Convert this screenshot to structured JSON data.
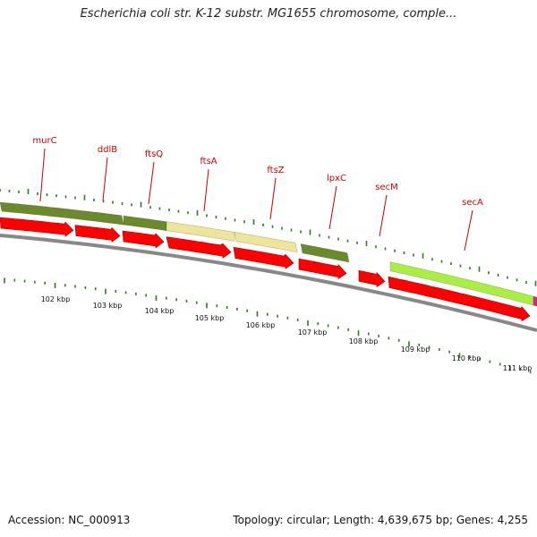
{
  "title": "Escherichia coli str. K-12 substr. MG1655 chromosome, comple...",
  "footer": {
    "accession": "Accession: NC_000913",
    "summary": "Topology: circular; Length: 4,639,675 bp; Genes: 4,255"
  },
  "colors": {
    "gene_dark_green": "#6b8a2c",
    "gene_pale_yellow": "#eee49a",
    "gene_lime": "#aaee44",
    "cds_red": "#ff0000",
    "backbone_gray": "#888888",
    "tick_green": "#2d7a1f",
    "label_red": "#cc0000"
  },
  "gene_labels": [
    "murC",
    "ddlB",
    "ftsQ",
    "ftsA",
    "ftsZ",
    "lpxC",
    "secM",
    "secA"
  ],
  "kbp_labels": [
    "102 kbp",
    "103 kbp",
    "104 kbp",
    "105 kbp",
    "106 kbp",
    "107 kbp",
    "108 kbp",
    "109 kbp",
    "110 kbp",
    "111 kbp"
  ]
}
